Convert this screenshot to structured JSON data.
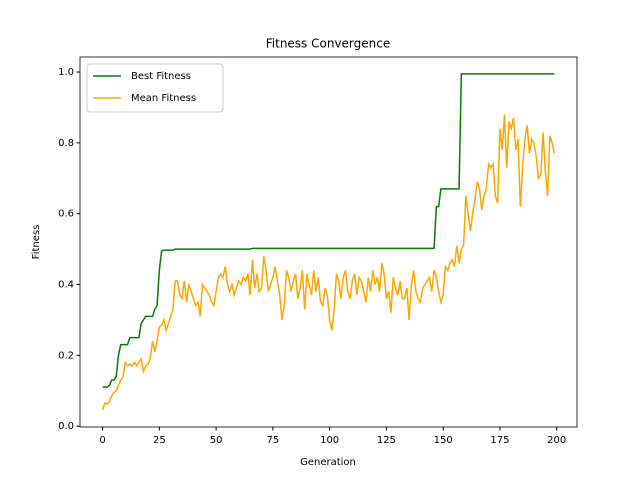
{
  "chart_data": {
    "type": "line",
    "title": "Fitness Convergence",
    "xlabel": "Generation",
    "ylabel": "Fitness",
    "x": [
      0,
      1,
      2,
      3,
      4,
      5,
      6,
      7,
      8,
      9,
      10,
      11,
      12,
      13,
      14,
      15,
      16,
      17,
      18,
      19,
      20,
      21,
      22,
      23,
      24,
      25,
      26,
      27,
      28,
      29,
      30,
      31,
      32,
      33,
      34,
      35,
      36,
      37,
      38,
      39,
      40,
      41,
      42,
      43,
      44,
      45,
      46,
      47,
      48,
      49,
      50,
      51,
      52,
      53,
      54,
      55,
      56,
      57,
      58,
      59,
      60,
      61,
      62,
      63,
      64,
      65,
      66,
      67,
      68,
      69,
      70,
      71,
      72,
      73,
      74,
      75,
      76,
      77,
      78,
      79,
      80,
      81,
      82,
      83,
      84,
      85,
      86,
      87,
      88,
      89,
      90,
      91,
      92,
      93,
      94,
      95,
      96,
      97,
      98,
      99,
      100,
      101,
      102,
      103,
      104,
      105,
      106,
      107,
      108,
      109,
      110,
      111,
      112,
      113,
      114,
      115,
      116,
      117,
      118,
      119,
      120,
      121,
      122,
      123,
      124,
      125,
      126,
      127,
      128,
      129,
      130,
      131,
      132,
      133,
      134,
      135,
      136,
      137,
      138,
      139,
      140,
      141,
      142,
      143,
      144,
      145,
      146,
      147,
      148,
      149,
      150,
      151,
      152,
      153,
      154,
      155,
      156,
      157,
      158,
      159,
      160,
      161,
      162,
      163,
      164,
      165,
      166,
      167,
      168,
      169,
      170,
      171,
      172,
      173,
      174,
      175,
      176,
      177,
      178,
      179,
      180,
      181,
      182,
      183,
      184,
      185,
      186,
      187,
      188,
      189,
      190,
      191,
      192,
      193,
      194,
      195,
      196,
      197,
      198,
      199
    ],
    "series": [
      {
        "name": "Best Fitness",
        "color": "green",
        "values": [
          0.11,
          0.11,
          0.11,
          0.115,
          0.13,
          0.13,
          0.14,
          0.2,
          0.23,
          0.23,
          0.23,
          0.23,
          0.25,
          0.25,
          0.25,
          0.25,
          0.25,
          0.29,
          0.3,
          0.31,
          0.31,
          0.31,
          0.31,
          0.33,
          0.34,
          0.44,
          0.495,
          0.497,
          0.497,
          0.497,
          0.497,
          0.497,
          0.5,
          0.5,
          0.5,
          0.5,
          0.5,
          0.5,
          0.5,
          0.5,
          0.5,
          0.5,
          0.5,
          0.5,
          0.5,
          0.5,
          0.5,
          0.5,
          0.5,
          0.5,
          0.5,
          0.5,
          0.5,
          0.5,
          0.5,
          0.5,
          0.5,
          0.5,
          0.5,
          0.5,
          0.5,
          0.5,
          0.5,
          0.5,
          0.5,
          0.5,
          0.502,
          0.502,
          0.502,
          0.502,
          0.502,
          0.502,
          0.502,
          0.502,
          0.502,
          0.502,
          0.502,
          0.502,
          0.502,
          0.502,
          0.502,
          0.502,
          0.502,
          0.502,
          0.502,
          0.502,
          0.502,
          0.502,
          0.502,
          0.502,
          0.502,
          0.502,
          0.502,
          0.502,
          0.502,
          0.502,
          0.502,
          0.502,
          0.502,
          0.502,
          0.502,
          0.502,
          0.502,
          0.502,
          0.502,
          0.502,
          0.502,
          0.502,
          0.502,
          0.502,
          0.502,
          0.502,
          0.502,
          0.502,
          0.502,
          0.502,
          0.502,
          0.502,
          0.502,
          0.502,
          0.502,
          0.502,
          0.502,
          0.502,
          0.502,
          0.502,
          0.502,
          0.502,
          0.502,
          0.502,
          0.502,
          0.502,
          0.502,
          0.502,
          0.502,
          0.502,
          0.502,
          0.502,
          0.502,
          0.502,
          0.502,
          0.502,
          0.502,
          0.502,
          0.502,
          0.502,
          0.502,
          0.62,
          0.62,
          0.67,
          0.67,
          0.67,
          0.67,
          0.67,
          0.67,
          0.67,
          0.67,
          0.67,
          0.995,
          0.995,
          0.995,
          0.995,
          0.995,
          0.995,
          0.995,
          0.995,
          0.995,
          0.995,
          0.995,
          0.995,
          0.995,
          0.995,
          0.995,
          0.995,
          0.995,
          0.995,
          0.995,
          0.995,
          0.995,
          0.995,
          0.995,
          0.995,
          0.995,
          0.995,
          0.995,
          0.995,
          0.995,
          0.995,
          0.995,
          0.995,
          0.995,
          0.995,
          0.995,
          0.995,
          0.995,
          0.995,
          0.995,
          0.995,
          0.995,
          0.995
        ]
      },
      {
        "name": "Mean Fitness",
        "color": "orange",
        "values": [
          0.045,
          0.065,
          0.062,
          0.07,
          0.085,
          0.095,
          0.1,
          0.115,
          0.13,
          0.14,
          0.18,
          0.17,
          0.175,
          0.17,
          0.18,
          0.17,
          0.18,
          0.19,
          0.155,
          0.17,
          0.175,
          0.19,
          0.24,
          0.21,
          0.24,
          0.28,
          0.285,
          0.3,
          0.27,
          0.29,
          0.31,
          0.33,
          0.41,
          0.41,
          0.37,
          0.36,
          0.41,
          0.35,
          0.4,
          0.38,
          0.36,
          0.34,
          0.35,
          0.31,
          0.4,
          0.39,
          0.38,
          0.37,
          0.35,
          0.34,
          0.38,
          0.42,
          0.43,
          0.42,
          0.45,
          0.4,
          0.38,
          0.4,
          0.37,
          0.39,
          0.41,
          0.4,
          0.42,
          0.41,
          0.43,
          0.37,
          0.47,
          0.39,
          0.43,
          0.38,
          0.39,
          0.48,
          0.44,
          0.38,
          0.4,
          0.42,
          0.45,
          0.41,
          0.37,
          0.3,
          0.34,
          0.44,
          0.42,
          0.38,
          0.41,
          0.43,
          0.36,
          0.39,
          0.44,
          0.33,
          0.43,
          0.4,
          0.37,
          0.44,
          0.38,
          0.42,
          0.35,
          0.34,
          0.39,
          0.37,
          0.3,
          0.27,
          0.33,
          0.43,
          0.41,
          0.36,
          0.42,
          0.44,
          0.38,
          0.36,
          0.41,
          0.43,
          0.37,
          0.42,
          0.41,
          0.38,
          0.35,
          0.42,
          0.38,
          0.44,
          0.4,
          0.42,
          0.38,
          0.46,
          0.43,
          0.36,
          0.38,
          0.32,
          0.42,
          0.39,
          0.37,
          0.41,
          0.36,
          0.36,
          0.39,
          0.3,
          0.4,
          0.44,
          0.38,
          0.36,
          0.35,
          0.39,
          0.4,
          0.41,
          0.42,
          0.38,
          0.44,
          0.42,
          0.38,
          0.35,
          0.37,
          0.45,
          0.44,
          0.46,
          0.47,
          0.45,
          0.51,
          0.46,
          0.5,
          0.51,
          0.65,
          0.6,
          0.55,
          0.6,
          0.64,
          0.69,
          0.67,
          0.61,
          0.65,
          0.67,
          0.74,
          0.73,
          0.74,
          0.65,
          0.63,
          0.84,
          0.78,
          0.88,
          0.73,
          0.86,
          0.84,
          0.87,
          0.78,
          0.81,
          0.62,
          0.73,
          0.81,
          0.85,
          0.77,
          0.81,
          0.8,
          0.76,
          0.7,
          0.71,
          0.83,
          0.72,
          0.65,
          0.82,
          0.8,
          0.77
        ]
      }
    ],
    "xlim": [
      -9.95,
      208.95
    ],
    "xticks": [
      0,
      25,
      50,
      75,
      100,
      125,
      150,
      175,
      200
    ],
    "ylim": [
      -0.0025,
      1.0425
    ],
    "yticks": [
      {
        "value": 0,
        "label": "0.0"
      },
      {
        "value": 0.2,
        "label": "0.2"
      },
      {
        "value": 0.4,
        "label": "0.4"
      },
      {
        "value": 0.6,
        "label": "0.6"
      },
      {
        "value": 0.8,
        "label": "0.8"
      },
      {
        "value": 1,
        "label": "1.0"
      }
    ],
    "legend": "upper left",
    "grid": false
  }
}
